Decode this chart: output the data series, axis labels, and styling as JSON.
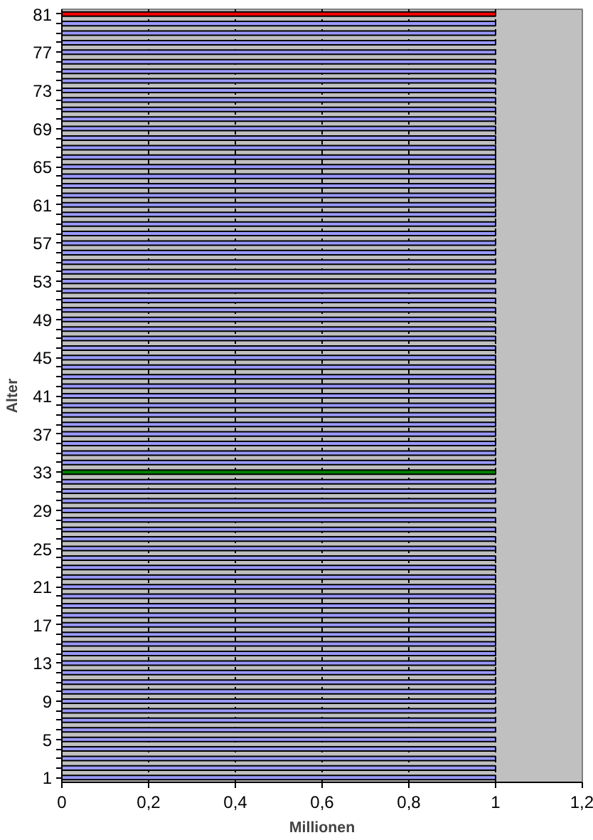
{
  "chart_data": {
    "type": "bar",
    "orientation": "horizontal",
    "xlabel": "Millionen",
    "ylabel": "Alter",
    "categories": [
      "81",
      null,
      null,
      null,
      "77",
      null,
      null,
      null,
      "73",
      null,
      null,
      null,
      "69",
      null,
      null,
      null,
      "65",
      null,
      null,
      null,
      "61",
      null,
      null,
      null,
      "57",
      null,
      null,
      null,
      "53",
      null,
      null,
      null,
      "49",
      null,
      null,
      null,
      "45",
      null,
      null,
      null,
      "41",
      null,
      null,
      null,
      "37",
      null,
      null,
      null,
      "33",
      null,
      null,
      null,
      "29",
      null,
      null,
      null,
      "25",
      null,
      null,
      null,
      "21",
      null,
      null,
      null,
      "17",
      null,
      null,
      null,
      "13",
      null,
      null,
      null,
      "9",
      null,
      null,
      null,
      "5",
      null,
      null,
      null,
      "1"
    ],
    "values": [
      1,
      1,
      1,
      1,
      1,
      1,
      1,
      1,
      1,
      1,
      1,
      1,
      1,
      1,
      1,
      1,
      1,
      1,
      1,
      1,
      1,
      1,
      1,
      1,
      1,
      1,
      1,
      1,
      1,
      1,
      1,
      1,
      1,
      1,
      1,
      1,
      1,
      1,
      1,
      1,
      1,
      1,
      1,
      1,
      1,
      1,
      1,
      1,
      1,
      1,
      1,
      1,
      1,
      1,
      1,
      1,
      1,
      1,
      1,
      1,
      1,
      1,
      1,
      1,
      1,
      1,
      1,
      1,
      1,
      1,
      1,
      1,
      1,
      1,
      1,
      1,
      1,
      1,
      1,
      1,
      1
    ],
    "colors": [
      "#ff0000",
      "#9999ff",
      "#9999ff",
      "#9999ff",
      "#9999ff",
      "#9999ff",
      "#9999ff",
      "#9999ff",
      "#9999ff",
      "#9999ff",
      "#9999ff",
      "#9999ff",
      "#9999ff",
      "#9999ff",
      "#9999ff",
      "#9999ff",
      "#9999ff",
      "#9999ff",
      "#9999ff",
      "#9999ff",
      "#9999ff",
      "#9999ff",
      "#9999ff",
      "#9999ff",
      "#9999ff",
      "#9999ff",
      "#9999ff",
      "#9999ff",
      "#9999ff",
      "#9999ff",
      "#9999ff",
      "#9999ff",
      "#9999ff",
      "#9999ff",
      "#9999ff",
      "#9999ff",
      "#9999ff",
      "#9999ff",
      "#9999ff",
      "#9999ff",
      "#9999ff",
      "#9999ff",
      "#9999ff",
      "#9999ff",
      "#9999ff",
      "#9999ff",
      "#9999ff",
      "#9999ff",
      "#008000",
      "#9999ff",
      "#9999ff",
      "#9999ff",
      "#9999ff",
      "#9999ff",
      "#9999ff",
      "#9999ff",
      "#9999ff",
      "#9999ff",
      "#9999ff",
      "#9999ff",
      "#9999ff",
      "#9999ff",
      "#9999ff",
      "#9999ff",
      "#9999ff",
      "#9999ff",
      "#9999ff",
      "#9999ff",
      "#9999ff",
      "#9999ff",
      "#9999ff",
      "#9999ff",
      "#9999ff",
      "#9999ff",
      "#9999ff",
      "#9999ff",
      "#9999ff",
      "#9999ff",
      "#9999ff",
      "#9999ff",
      "#9999ff"
    ],
    "xlim": [
      0,
      1.2
    ],
    "xticks": [
      0,
      {
        "value": 0.2,
        "label": "0,2"
      },
      {
        "value": 0.4,
        "label": "0,4"
      },
      {
        "value": 0.6,
        "label": "0,6"
      },
      {
        "value": 0.8,
        "label": "0,8"
      },
      1,
      {
        "value": 1.2,
        "label": "1,2"
      }
    ],
    "grid": "x"
  }
}
